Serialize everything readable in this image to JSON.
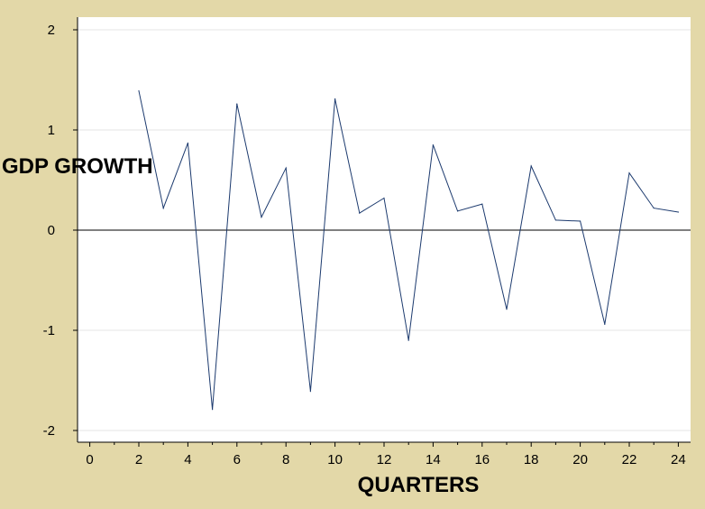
{
  "chart_data": {
    "type": "line",
    "title": "",
    "xlabel": "QUARTERS",
    "ylabel": "GDP GROWTH",
    "xlim": [
      -0.5,
      24.5
    ],
    "ylim": [
      -2.1,
      2.1
    ],
    "x_ticks": [
      0,
      2,
      4,
      6,
      8,
      10,
      12,
      14,
      16,
      18,
      20,
      22,
      24
    ],
    "y_ticks": [
      2,
      1,
      0,
      -1,
      -2
    ],
    "grid": "horizontal",
    "zero_line": true,
    "series": [
      {
        "x": [
          2,
          3,
          4,
          5,
          6,
          7,
          8,
          9,
          10,
          11,
          12,
          13,
          14,
          15,
          16,
          17,
          18,
          19,
          20,
          21,
          22,
          23,
          24
        ],
        "values": [
          1.39,
          0.22,
          0.87,
          -1.79,
          1.26,
          0.13,
          0.62,
          -1.61,
          1.31,
          0.17,
          0.32,
          -1.1,
          0.85,
          0.19,
          0.26,
          -0.79,
          0.64,
          0.1,
          0.09,
          -0.94,
          0.57,
          0.22,
          0.18
        ],
        "color": "#1c3a6e"
      }
    ]
  }
}
